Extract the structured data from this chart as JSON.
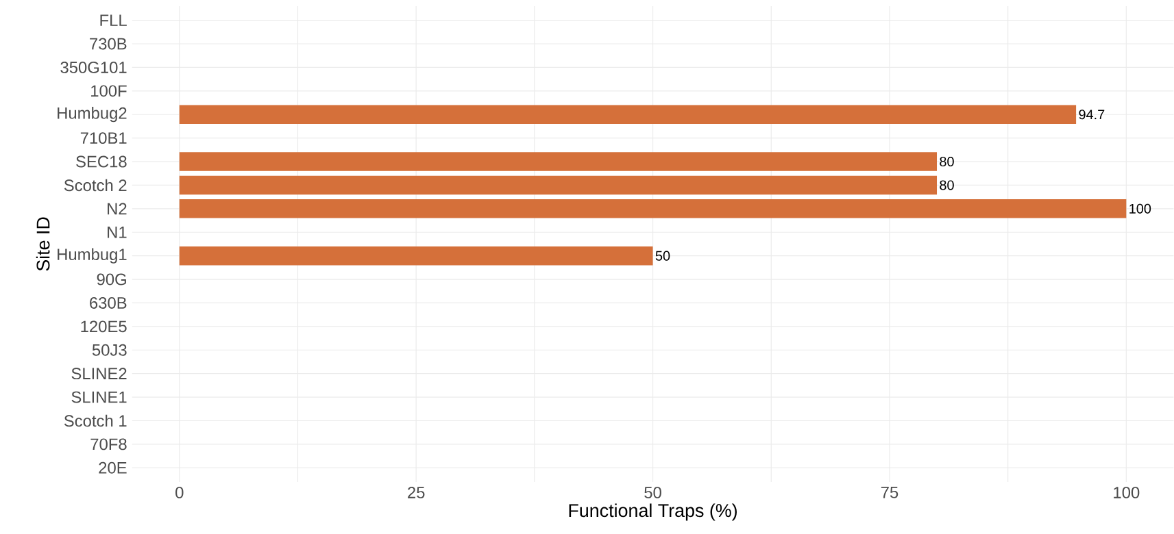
{
  "chart_data": {
    "type": "bar",
    "orientation": "horizontal",
    "xlabel": "Functional Traps (%)",
    "ylabel": "Site ID",
    "categories": [
      "FLL",
      "730B",
      "350G101",
      "100F",
      "Humbug2",
      "710B1",
      "SEC18",
      "Scotch 2",
      "N2",
      "N1",
      "Humbug1",
      "90G",
      "630B",
      "120E5",
      "50J3",
      "SLINE2",
      "SLINE1",
      "Scotch 1",
      "70F8",
      "20E"
    ],
    "values": [
      null,
      null,
      null,
      null,
      94.7,
      null,
      80,
      80,
      100,
      null,
      50,
      null,
      null,
      null,
      null,
      null,
      null,
      null,
      null,
      null
    ],
    "value_labels": [
      null,
      null,
      null,
      null,
      "94.7",
      null,
      "80",
      "80",
      "100",
      null,
      "50",
      null,
      null,
      null,
      null,
      null,
      null,
      null,
      null,
      null
    ],
    "color": "#d5703a",
    "xlim": [
      -5,
      105
    ],
    "xticks": [
      0,
      25,
      50,
      75,
      100
    ],
    "grid": true
  }
}
